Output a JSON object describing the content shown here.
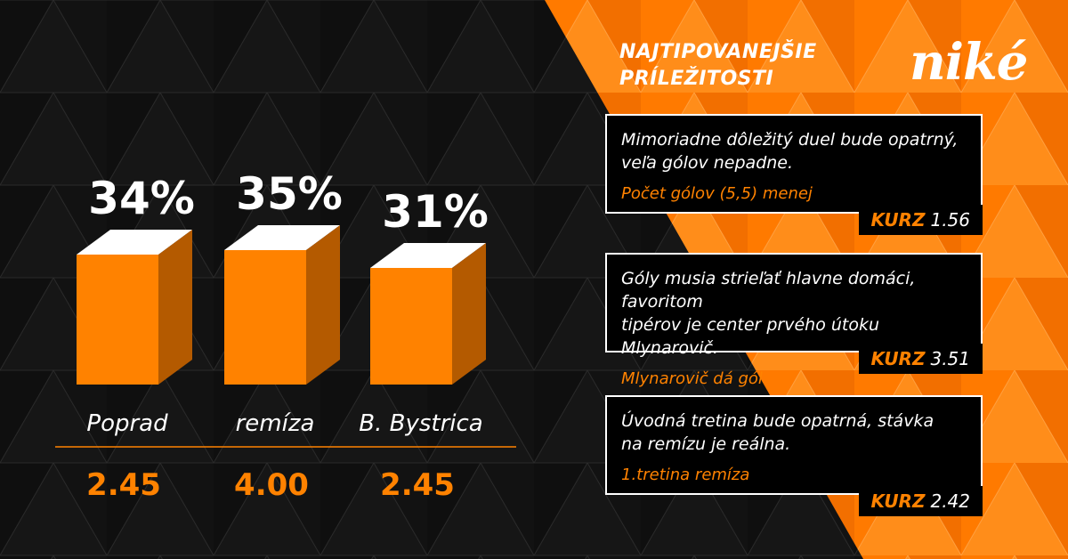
{
  "colors": {
    "accent": "#ff8200",
    "bar_front": "#ff8200",
    "bar_side": "#b45a00",
    "bar_top": "#ffffff",
    "background": "#0d0d0d"
  },
  "header": {
    "title_line1": "NAJTIPOVANEJŠIE",
    "title_line2": "PRÍLEŽITOSTI",
    "logo": "niké"
  },
  "chart_data": {
    "type": "bar",
    "categories": [
      "Poprad",
      "remíza",
      "B. Bystrica"
    ],
    "values": [
      34,
      35,
      31
    ],
    "value_labels": [
      "34%",
      "35%",
      "31%"
    ],
    "odds": [
      "2.45",
      "4.00",
      "2.45"
    ],
    "ylim": [
      0,
      40
    ]
  },
  "tips": [
    {
      "text_line1": "Mimoriadne dôležitý duel bude opatrný,",
      "text_line2": "veľa gólov nepadne.",
      "bet": "Počet gólov (5,5) menej",
      "kurz_label": "KURZ",
      "kurz_value": "1.56"
    },
    {
      "text_line1": "Góly musia strieľať hlavne domáci, favoritom",
      "text_line2": "tipérov je center prvého útoku Mlynarovič.",
      "bet": "Mlynarovič dá gól",
      "kurz_label": "KURZ",
      "kurz_value": "3.51"
    },
    {
      "text_line1": "Úvodná tretina bude opatrná, stávka",
      "text_line2": "na remízu je reálna.",
      "bet": "1.tretina remíza",
      "kurz_label": "KURZ",
      "kurz_value": "2.42"
    }
  ]
}
